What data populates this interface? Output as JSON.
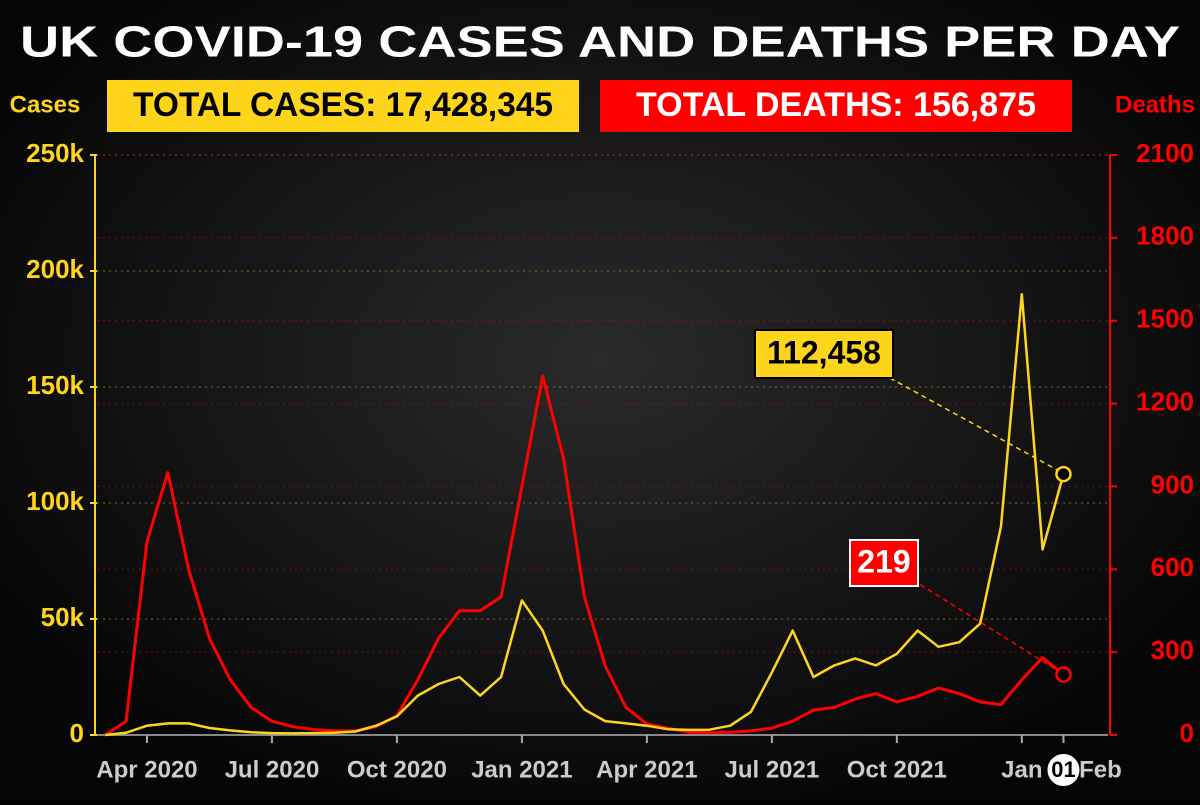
{
  "chart_data": {
    "type": "line",
    "title": "UK COVID-19 CASES AND DEATHS PER DAY",
    "total_cases": "TOTAL CASES: 17,428,345",
    "total_deaths": "TOTAL DEATHS: 156,875",
    "y_label": "Cases",
    "y2_label": "Deaths",
    "month_label": "Feb",
    "categories": [
      null,
      null,
      "Apr 2020",
      null,
      null,
      null,
      null,
      null,
      "Jul 2020",
      null,
      null,
      null,
      null,
      null,
      "Oct 2020",
      null,
      null,
      null,
      null,
      null,
      "Jan 2021",
      null,
      null,
      null,
      null,
      null,
      "Apr 2021",
      null,
      null,
      null,
      null,
      null,
      "Jul 2021",
      null,
      null,
      null,
      null,
      null,
      "Oct 2021",
      null,
      null,
      null,
      null,
      null,
      "Jan",
      null,
      "01"
    ],
    "series": [
      {
        "name": "Deaths",
        "color": "#ff0000",
        "axis": "y2",
        "values": [
          0,
          50,
          700,
          950,
          600,
          350,
          200,
          100,
          50,
          30,
          20,
          15,
          15,
          30,
          70,
          200,
          350,
          450,
          450,
          500,
          900,
          1300,
          1000,
          500,
          250,
          100,
          40,
          25,
          10,
          8,
          10,
          15,
          25,
          50,
          90,
          100,
          130,
          150,
          120,
          140,
          170,
          150,
          120,
          110,
          200,
          280,
          219
        ]
      },
      {
        "name": "Cases",
        "color": "#ffd51c",
        "values": [
          0,
          1000,
          4000,
          5000,
          5000,
          3000,
          2000,
          1200,
          800,
          700,
          800,
          1000,
          1500,
          4000,
          8000,
          17000,
          22000,
          25000,
          17000,
          25000,
          58000,
          45000,
          22000,
          11000,
          6000,
          5000,
          4000,
          2500,
          2200,
          2300,
          4000,
          10000,
          27000,
          45000,
          25000,
          30000,
          33000,
          30000,
          35000,
          45000,
          38000,
          40000,
          48000,
          90000,
          190000,
          80000,
          112458
        ],
        "value_labels": [
          null,
          null,
          null,
          null,
          null,
          null,
          null,
          null,
          null,
          null,
          null,
          null,
          null,
          null,
          null,
          null,
          null,
          null,
          null,
          null,
          null,
          null,
          null,
          null,
          null,
          null,
          null,
          null,
          null,
          null,
          null,
          null,
          null,
          null,
          null,
          null,
          null,
          null,
          null,
          null,
          null,
          null,
          null,
          null,
          null,
          null,
          "112,458"
        ]
      }
    ],
    "ylim": [
      0,
      250000
    ],
    "yticks": [
      0,
      {
        "value": 50000,
        "label": "50k"
      },
      {
        "value": 100000,
        "label": "100k"
      },
      {
        "value": 150000,
        "label": "150k"
      },
      {
        "value": 200000,
        "label": "200k"
      },
      {
        "value": 250000,
        "label": "250k"
      }
    ],
    "y2lim": [
      0,
      2100
    ],
    "y2ticks": [
      0,
      300,
      600,
      900,
      1200,
      1500,
      1800,
      2100
    ],
    "grid": true
  }
}
